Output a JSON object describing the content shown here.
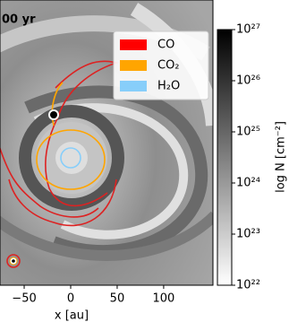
{
  "chart_data": {
    "type": "image",
    "title": "00 yr",
    "xlabel": "x [au]",
    "xlim": [
      -76,
      153
    ],
    "xticks": [
      {
        "value": -50,
        "label": "−50"
      },
      0,
      50,
      100
    ],
    "series": [
      {
        "name": "CO",
        "color": "#ff0000"
      },
      {
        "name": "CO₂",
        "color": "#ffa500"
      },
      {
        "name": "H₂O",
        "color": "#87cefa"
      }
    ],
    "colorbar": {
      "label": "log N [cm⁻²]",
      "log": true,
      "clim": [
        1e+22,
        1e+27
      ],
      "ticks": [
        {
          "value": 1e+22,
          "label": "10²²"
        },
        {
          "value": 1e+23,
          "label": "10²³"
        },
        {
          "value": 1e+24,
          "label": "10²⁴"
        },
        {
          "value": 1e+25,
          "label": "10²⁵"
        },
        {
          "value": 1e+26,
          "label": "10²⁶"
        },
        {
          "value": 1e+27,
          "label": "10²⁷"
        }
      ]
    }
  }
}
